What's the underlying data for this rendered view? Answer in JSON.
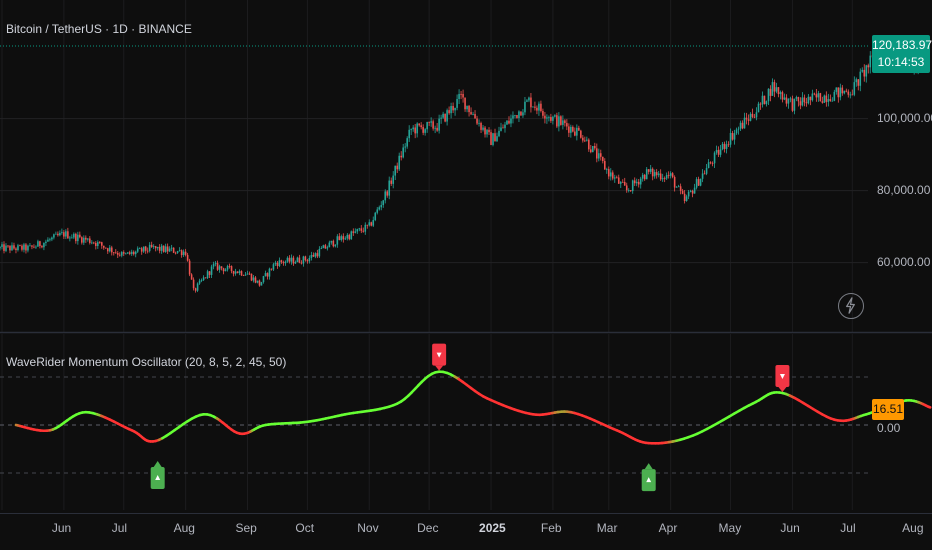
{
  "header": {
    "symbol_title": "Bitcoin / TetherUS · 1D · BINANCE"
  },
  "price_pane": {
    "last_price": "120,183.97",
    "countdown": "10:14:53",
    "last_price_value": 120183.97,
    "ylim": [
      40000,
      130000
    ],
    "y_ticks": [
      {
        "value": 100000,
        "label": "100,000.00"
      },
      {
        "value": 80000,
        "label": "80,000.00"
      },
      {
        "value": 60000,
        "label": "60,000.00"
      }
    ],
    "tag_color": "#089981",
    "up_color": "#26a69a",
    "down_color": "#ef5350",
    "icon": "lightning-icon"
  },
  "indicator_pane": {
    "title": "WaveRider Momentum Oscillator (20, 8, 5, 2, 45, 50)",
    "last_value": "16.51",
    "zero_label": "0.00",
    "tag_color": "#ff9800",
    "bull_color": "#66ff33",
    "bear_color": "#ff3333",
    "buy_signal_color": "#4caf50",
    "sell_signal_color": "#f23645",
    "ylim": [
      -50,
      80
    ],
    "levels": [
      45,
      0,
      -45
    ]
  },
  "x_axis": {
    "labels": [
      "Jun",
      "Jul",
      "Aug",
      "Sep",
      "Oct",
      "Nov",
      "Dec",
      "2025",
      "Feb",
      "Mar",
      "Apr",
      "May",
      "Jun",
      "Jul",
      "Aug"
    ]
  },
  "chart_data": [
    {
      "type": "candlestick",
      "title": "Bitcoin / TetherUS · 1D · BINANCE",
      "x": [
        "2024-05-15",
        "2024-06-01",
        "2024-06-15",
        "2024-07-01",
        "2024-07-15",
        "2024-08-01",
        "2024-08-05",
        "2024-08-15",
        "2024-09-01",
        "2024-09-07",
        "2024-09-15",
        "2024-10-01",
        "2024-10-15",
        "2024-11-01",
        "2024-11-10",
        "2024-11-22",
        "2024-12-05",
        "2024-12-17",
        "2025-01-01",
        "2025-01-20",
        "2025-02-01",
        "2025-02-15",
        "2025-03-01",
        "2025-03-10",
        "2025-03-20",
        "2025-04-01",
        "2025-04-08",
        "2025-04-20",
        "2025-05-01",
        "2025-05-15",
        "2025-05-22",
        "2025-06-01",
        "2025-06-15",
        "2025-07-01",
        "2025-07-14",
        "2025-07-25",
        "2025-08-02",
        "2025-08-08"
      ],
      "close": [
        64000,
        68000,
        66000,
        62000,
        64000,
        63000,
        52000,
        59000,
        57000,
        54000,
        60000,
        61000,
        66000,
        70000,
        80000,
        97000,
        98000,
        106000,
        94000,
        105000,
        100000,
        96000,
        85000,
        80000,
        85000,
        84000,
        77000,
        87000,
        95000,
        103000,
        109000,
        104000,
        106000,
        108000,
        119000,
        117000,
        114000,
        120183.97
      ],
      "ylim": [
        40000,
        130000
      ]
    },
    {
      "type": "line",
      "title": "WaveRider Momentum Oscillator (20, 8, 5, 2, 45, 50)",
      "x": [
        "2024-05-08",
        "2024-05-25",
        "2024-06-12",
        "2024-07-05",
        "2024-07-17",
        "2024-08-10",
        "2024-08-28",
        "2024-09-10",
        "2024-10-01",
        "2024-10-20",
        "2024-11-15",
        "2024-12-06",
        "2024-12-30",
        "2025-01-22",
        "2025-02-10",
        "2025-03-05",
        "2025-03-21",
        "2025-04-12",
        "2025-05-12",
        "2025-05-27",
        "2025-06-22",
        "2025-07-08",
        "2025-07-28",
        "2025-08-09"
      ],
      "y": [
        0,
        -5,
        12,
        -5,
        -15,
        10,
        -8,
        0,
        3,
        10,
        20,
        50,
        25,
        10,
        12,
        -5,
        -17,
        -10,
        20,
        30,
        5,
        10,
        23,
        16.51
      ],
      "ylim": [
        -50,
        80
      ],
      "levels": [
        45,
        0,
        -45
      ],
      "signals": [
        {
          "type": "buy",
          "x": "2024-07-18",
          "y": -15
        },
        {
          "type": "sell",
          "x": "2024-12-06",
          "y": 50
        },
        {
          "type": "buy",
          "x": "2025-03-21",
          "y": -17
        },
        {
          "type": "sell",
          "x": "2025-05-27",
          "y": 30
        }
      ]
    }
  ]
}
